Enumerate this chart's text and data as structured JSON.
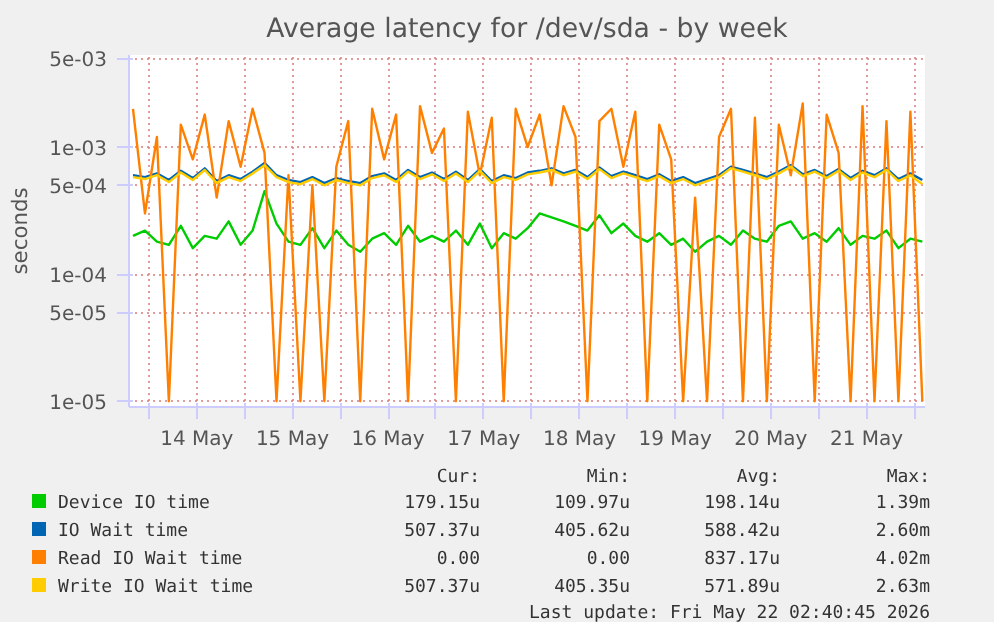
{
  "chart_data": {
    "type": "line",
    "title": "Average latency for /dev/sda - by week",
    "ylabel": "seconds",
    "log": "y",
    "grid": true,
    "legend": "bottom",
    "marker": "none",
    "line_style": "solid",
    "xlim": [
      "2026-05-13T19:00",
      "2026-05-22T02:40"
    ],
    "ylim": [
      9e-06,
      0.0053
    ],
    "xticks": [
      {
        "value": "2026-05-14T00:00",
        "label": null
      },
      {
        "value": "2026-05-14T12:00",
        "label": "14 May"
      },
      {
        "value": "2026-05-15T00:00",
        "label": null
      },
      {
        "value": "2026-05-15T12:00",
        "label": "15 May"
      },
      {
        "value": "2026-05-16T00:00",
        "label": null
      },
      {
        "value": "2026-05-16T12:00",
        "label": "16 May"
      },
      {
        "value": "2026-05-17T00:00",
        "label": null
      },
      {
        "value": "2026-05-17T12:00",
        "label": "17 May"
      },
      {
        "value": "2026-05-18T00:00",
        "label": null
      },
      {
        "value": "2026-05-18T12:00",
        "label": "18 May"
      },
      {
        "value": "2026-05-19T00:00",
        "label": null
      },
      {
        "value": "2026-05-19T12:00",
        "label": "19 May"
      },
      {
        "value": "2026-05-20T00:00",
        "label": null
      },
      {
        "value": "2026-05-20T12:00",
        "label": "20 May"
      },
      {
        "value": "2026-05-21T00:00",
        "label": null
      },
      {
        "value": "2026-05-21T12:00",
        "label": "21 May"
      },
      {
        "value": "2026-05-22T00:00",
        "label": null
      }
    ],
    "yticks": [
      {
        "value": 1e-05,
        "label": "1e-05"
      },
      {
        "value": 5e-05,
        "label": "5e-05"
      },
      {
        "value": 0.0001,
        "label": "1e-04"
      },
      {
        "value": 0.0005,
        "label": "5e-04"
      },
      {
        "value": 0.001,
        "label": "1e-03"
      },
      {
        "value": 0.005,
        "label": "5e-03"
      }
    ],
    "x": [
      "2026-05-13T20:00",
      "2026-05-13T23:00",
      "2026-05-14T02:00",
      "2026-05-14T05:00",
      "2026-05-14T08:00",
      "2026-05-14T11:00",
      "2026-05-14T14:00",
      "2026-05-14T17:00",
      "2026-05-14T20:00",
      "2026-05-14T23:00",
      "2026-05-15T02:00",
      "2026-05-15T05:00",
      "2026-05-15T08:00",
      "2026-05-15T11:00",
      "2026-05-15T14:00",
      "2026-05-15T17:00",
      "2026-05-15T20:00",
      "2026-05-15T23:00",
      "2026-05-16T02:00",
      "2026-05-16T05:00",
      "2026-05-16T08:00",
      "2026-05-16T11:00",
      "2026-05-16T14:00",
      "2026-05-16T17:00",
      "2026-05-16T20:00",
      "2026-05-16T23:00",
      "2026-05-17T02:00",
      "2026-05-17T05:00",
      "2026-05-17T08:00",
      "2026-05-17T11:00",
      "2026-05-17T14:00",
      "2026-05-17T17:00",
      "2026-05-17T20:00",
      "2026-05-17T23:00",
      "2026-05-18T02:00",
      "2026-05-18T05:00",
      "2026-05-18T08:00",
      "2026-05-18T11:00",
      "2026-05-18T14:00",
      "2026-05-18T17:00",
      "2026-05-18T20:00",
      "2026-05-18T23:00",
      "2026-05-19T02:00",
      "2026-05-19T05:00",
      "2026-05-19T08:00",
      "2026-05-19T11:00",
      "2026-05-19T14:00",
      "2026-05-19T17:00",
      "2026-05-19T20:00",
      "2026-05-19T23:00",
      "2026-05-20T02:00",
      "2026-05-20T05:00",
      "2026-05-20T08:00",
      "2026-05-20T11:00",
      "2026-05-20T14:00",
      "2026-05-20T17:00",
      "2026-05-20T20:00",
      "2026-05-20T23:00",
      "2026-05-21T02:00",
      "2026-05-21T05:00",
      "2026-05-21T08:00",
      "2026-05-21T11:00",
      "2026-05-21T14:00",
      "2026-05-21T17:00",
      "2026-05-21T20:00",
      "2026-05-21T23:00",
      "2026-05-22T02:00"
    ],
    "series": [
      {
        "name": "Device IO time",
        "color": "#00cc00",
        "values": [
          0.0002,
          0.00022,
          0.00018,
          0.00017,
          0.00024,
          0.00016,
          0.0002,
          0.00019,
          0.00026,
          0.00017,
          0.00022,
          0.00045,
          0.00025,
          0.00018,
          0.00017,
          0.00023,
          0.00016,
          0.00022,
          0.00017,
          0.00015,
          0.00019,
          0.00021,
          0.00017,
          0.00024,
          0.00018,
          0.0002,
          0.00018,
          0.00022,
          0.00017,
          0.00025,
          0.00016,
          0.00021,
          0.00019,
          0.00023,
          0.0003,
          0.00028,
          0.00026,
          0.00024,
          0.00022,
          0.00029,
          0.00021,
          0.00025,
          0.0002,
          0.00018,
          0.00021,
          0.00017,
          0.00019,
          0.00015,
          0.00018,
          0.0002,
          0.00017,
          0.00022,
          0.00019,
          0.00018,
          0.00024,
          0.00026,
          0.00019,
          0.00021,
          0.00018,
          0.00023,
          0.00017,
          0.0002,
          0.00019,
          0.00022,
          0.00016,
          0.00019,
          0.00018
        ]
      },
      {
        "name": "IO Wait time",
        "color": "#0066b3",
        "values": [
          0.0006,
          0.00058,
          0.00062,
          0.00055,
          0.00065,
          0.00057,
          0.00068,
          0.00054,
          0.0006,
          0.00056,
          0.00064,
          0.00075,
          0.0006,
          0.00055,
          0.00053,
          0.00058,
          0.00052,
          0.00057,
          0.00054,
          0.00052,
          0.00059,
          0.00062,
          0.00055,
          0.00066,
          0.00058,
          0.00063,
          0.00056,
          0.00064,
          0.00055,
          0.00067,
          0.00054,
          0.0006,
          0.00057,
          0.00063,
          0.00065,
          0.00068,
          0.00062,
          0.00066,
          0.00058,
          0.00069,
          0.00059,
          0.00064,
          0.0006,
          0.00056,
          0.00061,
          0.00054,
          0.00058,
          0.00052,
          0.00056,
          0.0006,
          0.0007,
          0.00066,
          0.00062,
          0.00058,
          0.00064,
          0.00072,
          0.00061,
          0.00066,
          0.00059,
          0.00067,
          0.00057,
          0.00065,
          0.0006,
          0.00068,
          0.00056,
          0.00062,
          0.00055
        ]
      },
      {
        "name": "Read IO Wait time",
        "color": "#ff8000",
        "values": [
          0.002,
          0.0003,
          0.0012,
          1e-05,
          0.0015,
          0.0008,
          0.0018,
          0.0004,
          0.0016,
          0.0007,
          0.002,
          0.0009,
          1e-05,
          0.0006,
          1e-05,
          0.0005,
          1e-05,
          0.0007,
          0.0016,
          1e-05,
          0.002,
          0.0008,
          0.0018,
          1e-05,
          0.0021,
          0.0009,
          0.0014,
          1e-05,
          0.0019,
          0.0006,
          0.0017,
          1e-05,
          0.002,
          0.001,
          0.0018,
          0.0005,
          0.0021,
          0.0012,
          1e-05,
          0.0016,
          0.002,
          0.0007,
          0.0019,
          1e-05,
          0.0015,
          0.0008,
          1e-05,
          0.0004,
          1e-05,
          0.0012,
          0.002,
          1e-05,
          0.0017,
          1e-05,
          0.0015,
          0.0006,
          0.0022,
          1e-05,
          0.0018,
          0.0009,
          1e-05,
          0.0021,
          1e-05,
          0.0016,
          1e-05,
          0.0019,
          1e-05
        ]
      },
      {
        "name": "Write IO Wait time",
        "color": "#ffcc00",
        "values": [
          0.00058,
          0.00056,
          0.0006,
          0.00053,
          0.00063,
          0.00055,
          0.00066,
          0.00052,
          0.00058,
          0.00054,
          0.00062,
          0.00072,
          0.00058,
          0.00053,
          0.00051,
          0.00056,
          0.0005,
          0.00055,
          0.00052,
          0.0005,
          0.00057,
          0.0006,
          0.00053,
          0.00064,
          0.00056,
          0.00061,
          0.00054,
          0.00062,
          0.00053,
          0.00065,
          0.00052,
          0.00058,
          0.00055,
          0.00061,
          0.00063,
          0.00066,
          0.0006,
          0.00064,
          0.00056,
          0.00067,
          0.00057,
          0.00062,
          0.00058,
          0.00054,
          0.00059,
          0.00052,
          0.00056,
          0.0005,
          0.00054,
          0.00058,
          0.00068,
          0.00064,
          0.0006,
          0.00056,
          0.00062,
          0.0007,
          0.00059,
          0.00064,
          0.00057,
          0.00065,
          0.00055,
          0.00063,
          0.00058,
          0.00066,
          0.00054,
          0.0006,
          0.00051
        ]
      }
    ],
    "annotations": [
      "Cur:",
      "Min:",
      "Avg:",
      "Max:",
      "179.15u",
      "109.97u",
      "198.14u",
      "1.39m",
      "507.37u",
      "405.62u",
      "588.42u",
      "2.60m",
      "0.00",
      "0.00",
      "837.17u",
      "4.02m",
      "507.37u",
      "405.35u",
      "571.89u",
      "2.63m",
      "Last update: Fri May 22 02:40:45 2026"
    ]
  }
}
